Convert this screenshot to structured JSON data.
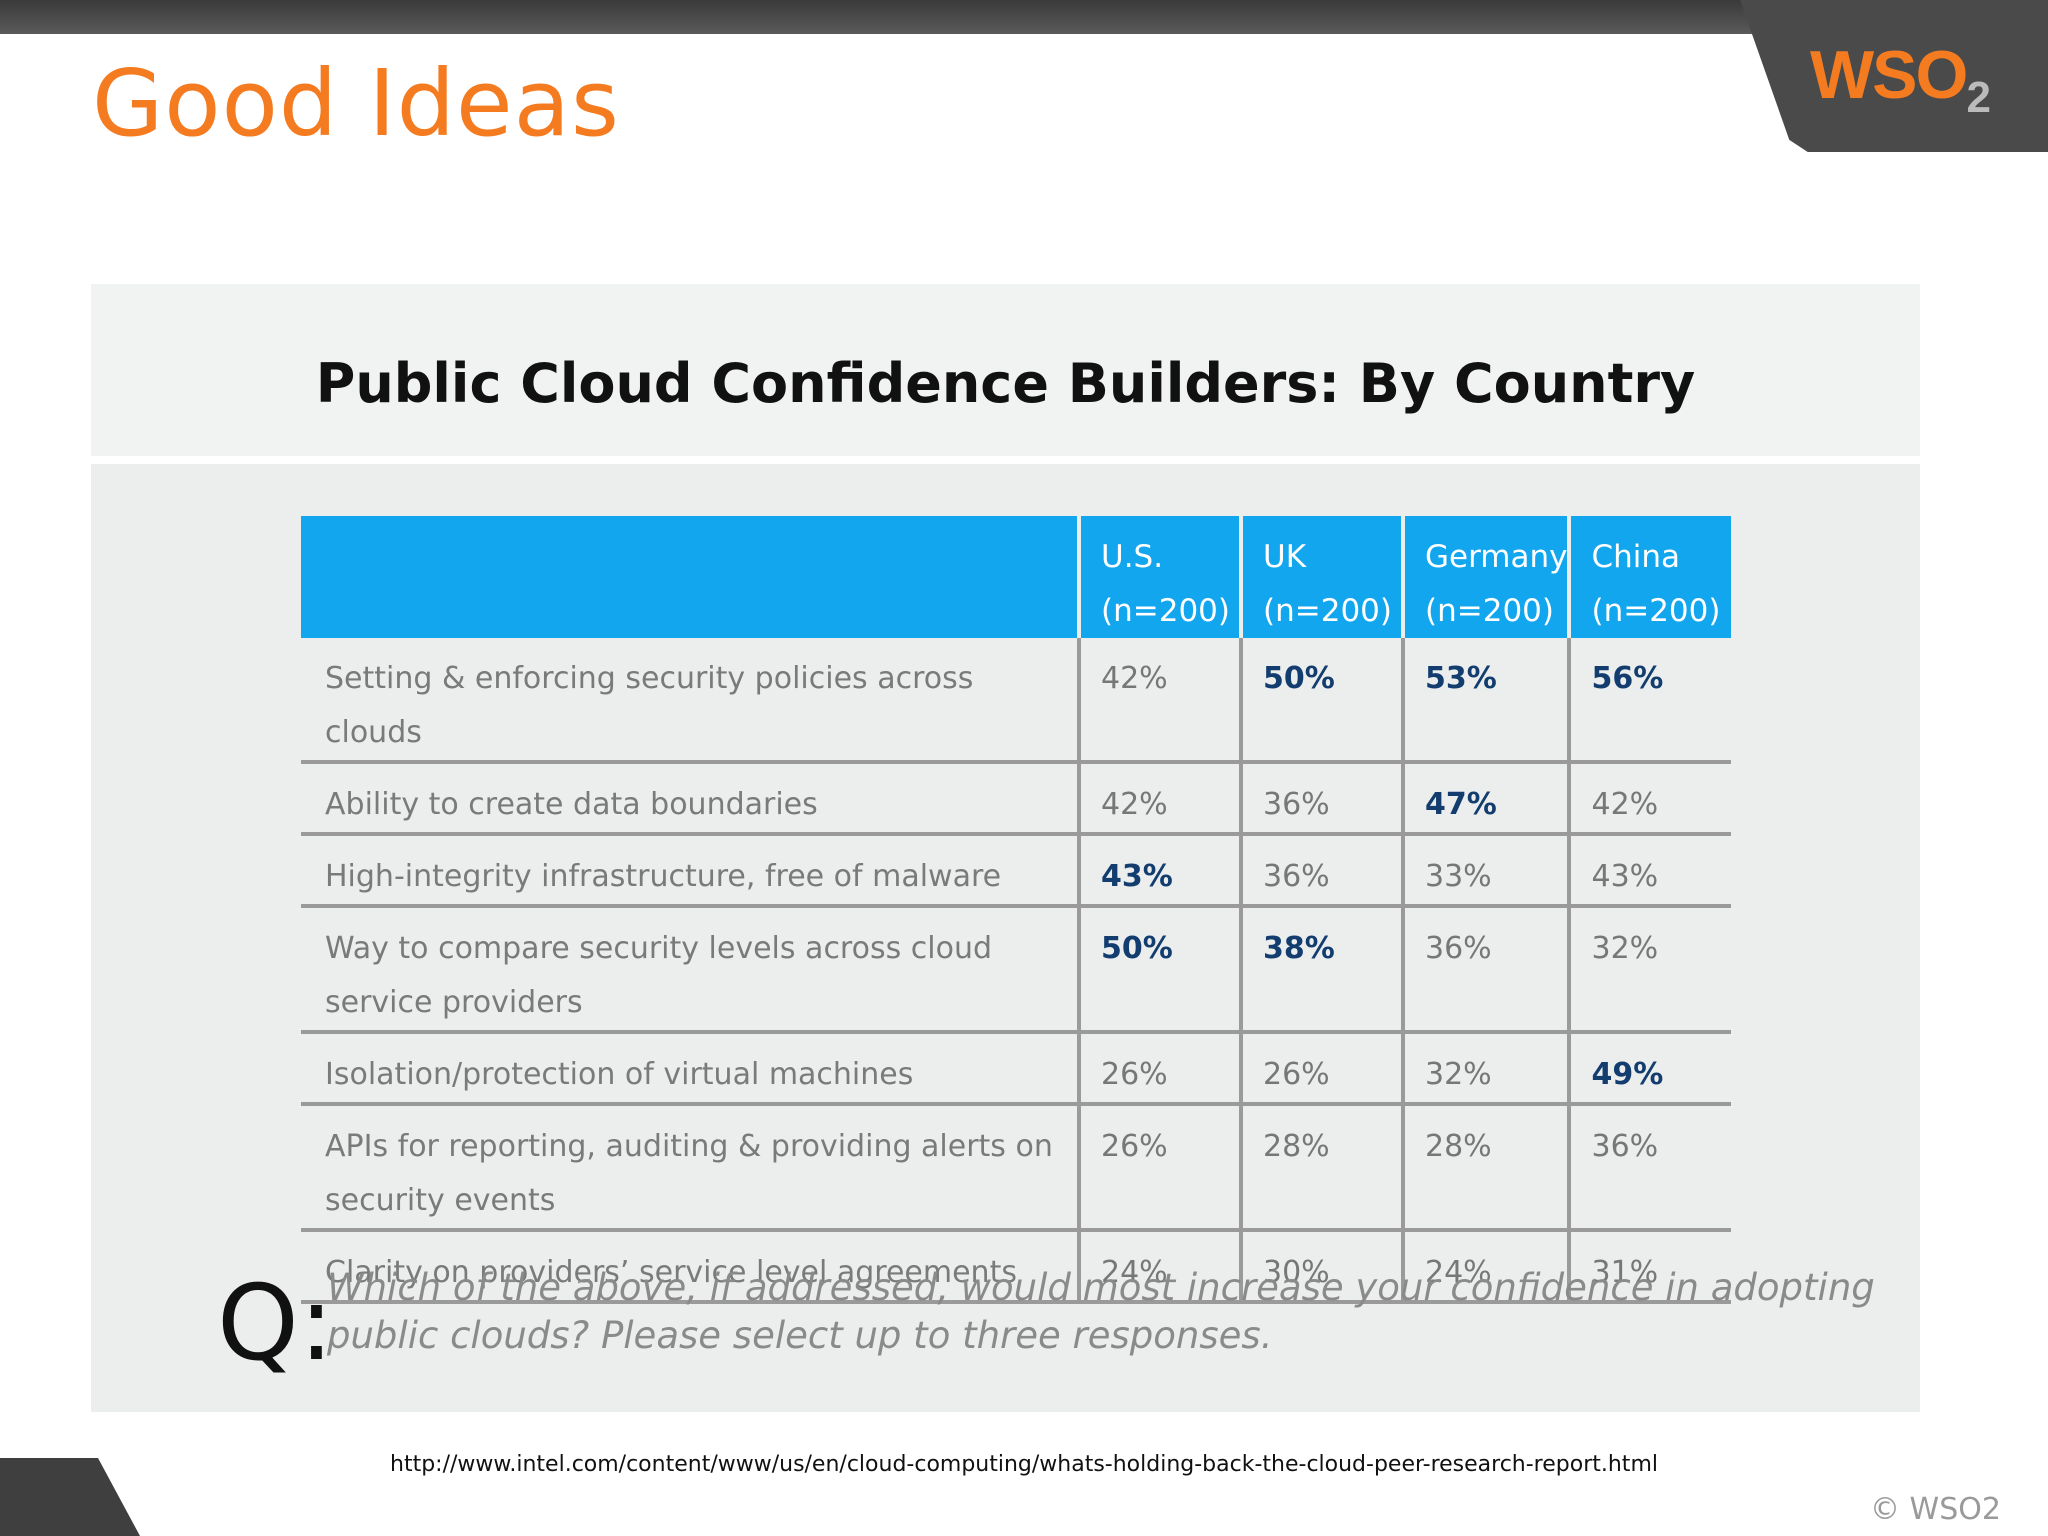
{
  "slide": {
    "title": "Good Ideas",
    "logo_main": "WSO",
    "logo_sub": "2",
    "source_url": "http://www.intel.com/content/www/us/en/cloud-computing/whats-holding-back-the-cloud-peer-research-report.html",
    "copyright": "© WSO2"
  },
  "figure": {
    "title": "Public Cloud Confidence Builders: By Country",
    "columns": [
      {
        "name": "U.S.",
        "n": "(n=200)"
      },
      {
        "name": "UK",
        "n": "(n=200)"
      },
      {
        "name": "Germany",
        "n": "(n=200)"
      },
      {
        "name": "China",
        "n": "(n=200)"
      }
    ],
    "rows": [
      {
        "label_lines": [
          "Setting & enforcing security policies across clouds"
        ],
        "values": [
          "42%",
          "50%",
          "53%",
          "56%"
        ],
        "highlight": [
          false,
          true,
          true,
          true
        ]
      },
      {
        "label_lines": [
          "Ability to create data boundaries"
        ],
        "values": [
          "42%",
          "36%",
          "47%",
          "42%"
        ],
        "highlight": [
          false,
          false,
          true,
          false
        ]
      },
      {
        "label_lines": [
          "High-integrity infrastructure, free of malware"
        ],
        "values": [
          "43%",
          "36%",
          "33%",
          "43%"
        ],
        "highlight": [
          true,
          false,
          false,
          false
        ]
      },
      {
        "label_lines": [
          "Way to compare security levels across cloud",
          "service providers"
        ],
        "values": [
          "50%",
          "38%",
          "36%",
          "32%"
        ],
        "highlight": [
          true,
          true,
          false,
          false
        ]
      },
      {
        "label_lines": [
          "Isolation/protection of virtual machines"
        ],
        "values": [
          "26%",
          "26%",
          "32%",
          "49%"
        ],
        "highlight": [
          false,
          false,
          false,
          true
        ]
      },
      {
        "label_lines": [
          "APIs for reporting, auditing & providing alerts on",
          "security events"
        ],
        "values": [
          "26%",
          "28%",
          "28%",
          "36%"
        ],
        "highlight": [
          false,
          false,
          false,
          false
        ]
      },
      {
        "label_lines": [
          "Clarity on providers’ service level agreements"
        ],
        "values": [
          "24%",
          "30%",
          "24%",
          "31%"
        ],
        "highlight": [
          false,
          false,
          false,
          false
        ]
      }
    ],
    "question_mark": "Q:",
    "question_lines": [
      "Which of the above, if addressed, would most increase your confidence in adopting",
      "public clouds? Please select up to three responses."
    ],
    "colors": {
      "header_bg": "#12a6ee",
      "highlight_text": "#123d6e",
      "title_orange": "#f47b20"
    }
  }
}
